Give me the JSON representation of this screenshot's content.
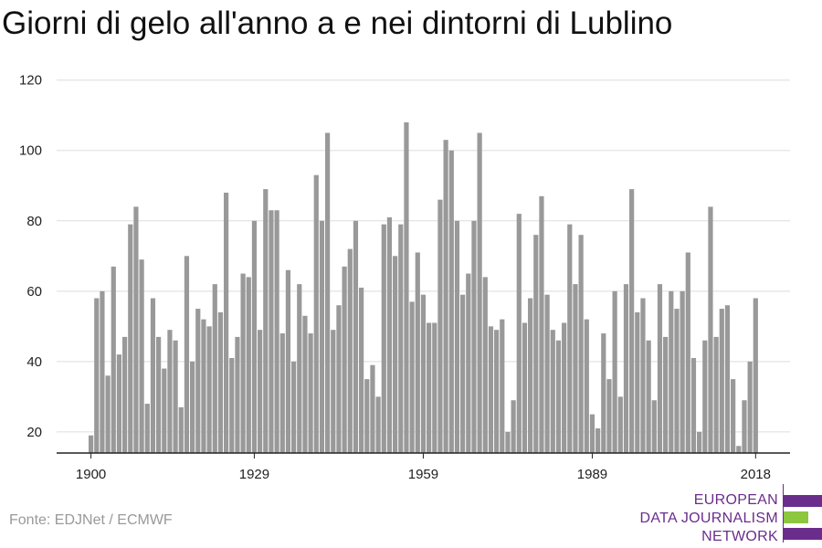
{
  "title": "Giorni di gelo all'anno a e nei dintorni di Lublino",
  "source": "Fonte: EDJNet / ECMWF",
  "logo": {
    "lines": [
      "EUROPEAN",
      "DATA JOURNALISM",
      "NETWORK"
    ],
    "text_color": "#6b2d8c",
    "bar_colors": [
      "#6b2d8c",
      "#8dc63f",
      "#6b2d8c"
    ]
  },
  "colors": {
    "bar": "#999999",
    "grid": "#dddddd",
    "axis": "#222222"
  },
  "chart_data": {
    "type": "bar",
    "title": "Giorni di gelo all'anno a e nei dintorni di Lublino",
    "xlabel": "",
    "ylabel": "",
    "x_ticks": [
      "1900",
      "1929",
      "1959",
      "1989",
      "2018"
    ],
    "y_ticks": [
      20,
      40,
      60,
      80,
      100,
      120
    ],
    "ylim": [
      14,
      122
    ],
    "grid": true,
    "legend": "none",
    "categories": [
      1900,
      1901,
      1902,
      1903,
      1904,
      1905,
      1906,
      1907,
      1908,
      1909,
      1910,
      1911,
      1912,
      1913,
      1914,
      1915,
      1916,
      1917,
      1918,
      1919,
      1920,
      1921,
      1922,
      1923,
      1924,
      1925,
      1926,
      1927,
      1928,
      1929,
      1930,
      1931,
      1932,
      1933,
      1934,
      1935,
      1936,
      1937,
      1938,
      1939,
      1940,
      1941,
      1942,
      1943,
      1944,
      1945,
      1946,
      1947,
      1948,
      1949,
      1950,
      1951,
      1952,
      1953,
      1954,
      1955,
      1956,
      1957,
      1958,
      1959,
      1960,
      1961,
      1962,
      1963,
      1964,
      1965,
      1966,
      1967,
      1968,
      1969,
      1970,
      1971,
      1972,
      1973,
      1974,
      1975,
      1976,
      1977,
      1978,
      1979,
      1980,
      1981,
      1982,
      1983,
      1984,
      1985,
      1986,
      1987,
      1988,
      1989,
      1990,
      1991,
      1992,
      1993,
      1994,
      1995,
      1996,
      1997,
      1998,
      1999,
      2000,
      2001,
      2002,
      2003,
      2004,
      2005,
      2006,
      2007,
      2008,
      2009,
      2010,
      2011,
      2012,
      2013,
      2014,
      2015,
      2016,
      2017,
      2018
    ],
    "values": [
      19,
      58,
      60,
      36,
      67,
      42,
      47,
      79,
      84,
      69,
      28,
      58,
      47,
      38,
      49,
      46,
      27,
      70,
      40,
      55,
      52,
      50,
      62,
      54,
      88,
      41,
      47,
      65,
      64,
      80,
      49,
      89,
      83,
      83,
      48,
      66,
      40,
      62,
      53,
      48,
      93,
      80,
      105,
      49,
      56,
      67,
      72,
      80,
      61,
      35,
      39,
      30,
      79,
      81,
      70,
      79,
      108,
      57,
      71,
      59,
      51,
      51,
      86,
      103,
      100,
      80,
      59,
      65,
      80,
      105,
      64,
      50,
      49,
      52,
      20,
      29,
      82,
      51,
      58,
      76,
      87,
      59,
      49,
      46,
      51,
      79,
      62,
      76,
      52,
      25,
      21,
      48,
      35,
      60,
      30,
      62,
      89,
      54,
      58,
      46,
      29,
      62,
      47,
      60,
      55,
      60,
      71,
      41,
      20,
      46,
      84,
      47,
      55,
      56,
      35,
      16,
      29,
      40,
      58
    ]
  }
}
